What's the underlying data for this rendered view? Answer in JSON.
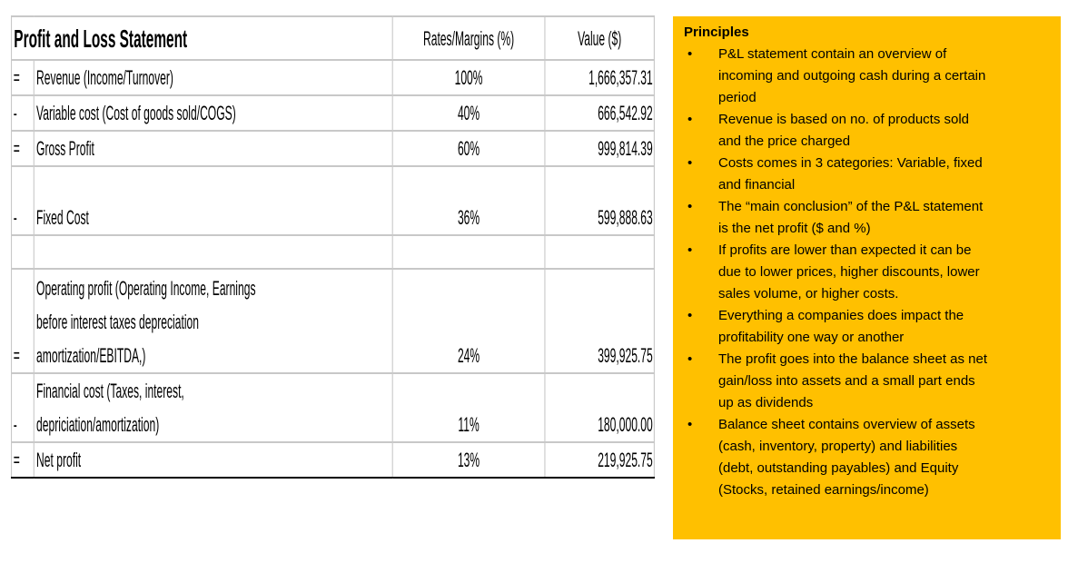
{
  "table": {
    "title": "Profit and Loss Statement",
    "col_rates": "Rates/Margins (%)",
    "col_value": "Value ($)",
    "rows": [
      {
        "sign": "=",
        "lines": [
          "Revenue (Income/Turnover)"
        ],
        "rate": "100%",
        "value": "1,666,357.31"
      },
      {
        "sign": "-",
        "lines": [
          "Variable cost (Cost of goods sold/COGS)"
        ],
        "rate": "40%",
        "value": "666,542.92"
      },
      {
        "sign": "=",
        "lines": [
          "Gross Profit"
        ],
        "rate": "60%",
        "value": "999,814.39"
      },
      {
        "sign": "-",
        "lines": [
          "Fixed Cost"
        ],
        "rate": "36%",
        "value": "599,888.63"
      },
      {
        "sign": "",
        "lines": [
          ""
        ],
        "rate": "",
        "value": ""
      },
      {
        "sign": "=",
        "lines": [
          "Operating profit (Operating Income, Earnings",
          "before interest taxes depreciation",
          "amortization/EBITDA,)"
        ],
        "rate": "24%",
        "value": "399,925.75"
      },
      {
        "sign": "-",
        "lines": [
          "Financial cost (Taxes, interest,",
          "depriciation/amortization)"
        ],
        "rate": "11%",
        "value": "180,000.00"
      },
      {
        "sign": "=",
        "lines": [
          "Net profit"
        ],
        "rate": "13%",
        "value": "219,925.75"
      }
    ]
  },
  "principles": {
    "title": "Principles",
    "background": "#ffc000",
    "items": [
      [
        "P&L statement contain an overview of",
        "incoming and outgoing cash during a certain",
        "period"
      ],
      [
        "Revenue is based on no. of products sold",
        "and the price charged"
      ],
      [
        "Costs comes in 3 categories: Variable, fixed",
        "and financial"
      ],
      [
        "The “main conclusion” of the P&L statement",
        "is the net profit ($ and %)"
      ],
      [
        "If profits are lower than expected it can be",
        "due to lower prices, higher discounts, lower",
        "sales volume, or higher costs."
      ],
      [
        "Everything a companies does impact the",
        "profitability one way or another"
      ],
      [
        "The profit goes into the balance sheet as net",
        "gain/loss into assets and a small part ends",
        "up as dividends"
      ],
      [
        "Balance sheet contains overview of  assets",
        "(cash, inventory, property) and liabilities",
        "(debt, outstanding payables) and Equity",
        "(Stocks, retained earnings/income)"
      ]
    ]
  }
}
